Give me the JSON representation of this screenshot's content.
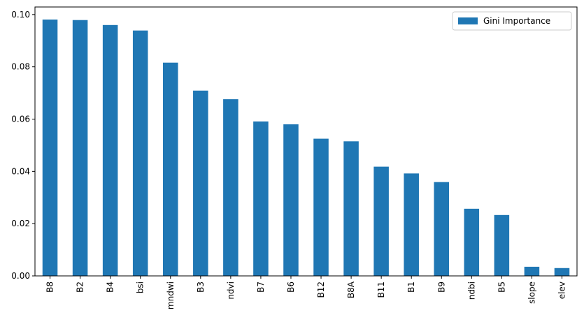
{
  "chart_data": {
    "type": "bar",
    "categories": [
      "B8",
      "B2",
      "B4",
      "bsi",
      "mndwi",
      "B3",
      "ndvi",
      "B7",
      "B6",
      "B12",
      "B8A",
      "B11",
      "B1",
      "B9",
      "ndbi",
      "B5",
      "slope",
      "elev"
    ],
    "series": [
      {
        "name": "Gini Importance",
        "color": "#1f77b4",
        "values": [
          0.0981,
          0.0979,
          0.096,
          0.0939,
          0.0816,
          0.0709,
          0.0676,
          0.0591,
          0.058,
          0.0525,
          0.0515,
          0.0418,
          0.0392,
          0.0359,
          0.0257,
          0.0233,
          0.0035,
          0.003
        ]
      }
    ],
    "ylim": [
      0,
      0.1029
    ],
    "yticks": [
      {
        "value": 0,
        "label": "0.00"
      },
      {
        "value": 0.02,
        "label": "0.02"
      },
      {
        "value": 0.04,
        "label": "0.04"
      },
      {
        "value": 0.06,
        "label": "0.06"
      },
      {
        "value": 0.08,
        "label": "0.08"
      },
      {
        "value": 0.1,
        "label": "0.10"
      }
    ],
    "legend": "upper right"
  }
}
